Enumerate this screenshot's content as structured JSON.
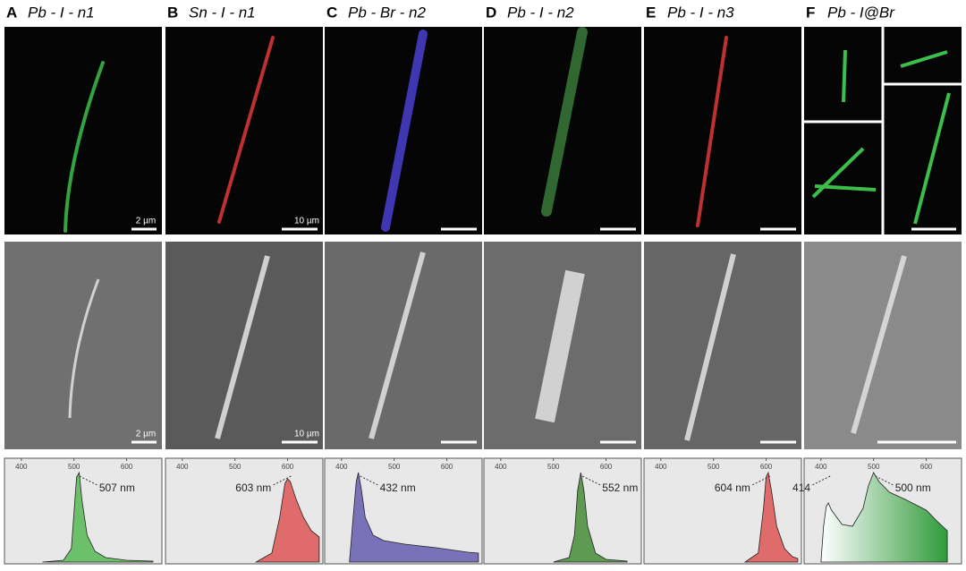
{
  "panels": [
    {
      "letter": "A",
      "title": "Pb - I - n1",
      "fluorescence_scale": "2 µm",
      "sem_scale": "2 µm"
    },
    {
      "letter": "B",
      "title": "Sn - I - n1",
      "fluorescence_scale": "10 µm",
      "sem_scale": "10 µm"
    },
    {
      "letter": "C",
      "title": "Pb - Br - n2"
    },
    {
      "letter": "D",
      "title": "Pb - I - n2"
    },
    {
      "letter": "E",
      "title": "Pb - I - n3"
    },
    {
      "letter": "F",
      "title": "Pb - I@Br"
    }
  ],
  "chart_data": [
    {
      "type": "area",
      "color": "#6cc06a",
      "xlim": [
        368,
        667
      ],
      "ylim": [
        0,
        1
      ],
      "xticks": [
        400,
        500,
        600
      ],
      "x": [
        440,
        480,
        495,
        500,
        505,
        510,
        515,
        525,
        540,
        560,
        600,
        650
      ],
      "values": [
        0,
        0.02,
        0.15,
        0.55,
        0.95,
        1,
        0.7,
        0.3,
        0.12,
        0.05,
        0.02,
        0.01
      ],
      "peak_labels": [
        {
          "value": 507,
          "label": "507 nm"
        }
      ]
    },
    {
      "type": "area",
      "color": "#e06b6b",
      "xlim": [
        368,
        667
      ],
      "ylim": [
        0,
        1
      ],
      "xticks": [
        400,
        500,
        600
      ],
      "x": [
        540,
        570,
        585,
        595,
        600,
        605,
        615,
        630,
        645,
        660
      ],
      "values": [
        0,
        0.1,
        0.5,
        0.88,
        0.93,
        0.9,
        0.72,
        0.5,
        0.35,
        0.28
      ],
      "peak_labels": [
        {
          "value": 603,
          "label": "603 nm"
        }
      ]
    },
    {
      "type": "area",
      "color": "#7a72b8",
      "xlim": [
        368,
        667
      ],
      "ylim": [
        0,
        1
      ],
      "xticks": [
        400,
        500,
        600
      ],
      "x": [
        415,
        422,
        428,
        432,
        438,
        445,
        460,
        480,
        520,
        580,
        640,
        660
      ],
      "values": [
        0,
        0.5,
        0.9,
        1,
        0.8,
        0.5,
        0.3,
        0.24,
        0.2,
        0.16,
        0.11,
        0.1
      ],
      "peak_labels": [
        {
          "value": 432,
          "label": "432 nm"
        }
      ]
    },
    {
      "type": "area",
      "color": "#5e9a52",
      "xlim": [
        368,
        667
      ],
      "ylim": [
        0,
        1
      ],
      "xticks": [
        400,
        500,
        600
      ],
      "x": [
        500,
        530,
        540,
        546,
        552,
        558,
        565,
        580,
        600,
        640
      ],
      "values": [
        0,
        0.05,
        0.3,
        0.8,
        1,
        0.8,
        0.4,
        0.1,
        0.03,
        0.01
      ],
      "peak_labels": [
        {
          "value": 552,
          "label": "552 nm"
        }
      ]
    },
    {
      "type": "area",
      "color": "#e06b6b",
      "xlim": [
        368,
        667
      ],
      "ylim": [
        0,
        1
      ],
      "xticks": [
        400,
        500,
        600
      ],
      "x": [
        560,
        585,
        595,
        600,
        604,
        610,
        620,
        635,
        650,
        660
      ],
      "values": [
        0,
        0.1,
        0.6,
        0.95,
        1,
        0.8,
        0.4,
        0.15,
        0.06,
        0.04
      ],
      "peak_labels": [
        {
          "value": 604,
          "label": "604 nm"
        }
      ]
    },
    {
      "type": "area",
      "color": "#2f9a3a",
      "gradient": true,
      "xlim": [
        368,
        667
      ],
      "ylim": [
        0,
        1
      ],
      "xticks": [
        400,
        500,
        600
      ],
      "x": [
        400,
        405,
        410,
        414,
        420,
        440,
        460,
        480,
        490,
        500,
        510,
        530,
        560,
        600,
        620,
        640
      ],
      "values": [
        0,
        0.4,
        0.62,
        0.66,
        0.58,
        0.42,
        0.4,
        0.6,
        0.85,
        1,
        0.9,
        0.78,
        0.7,
        0.58,
        0.46,
        0.35
      ],
      "peak_labels": [
        {
          "value": 414,
          "label": "414"
        },
        {
          "value": 500,
          "label": "500 nm"
        }
      ]
    }
  ]
}
